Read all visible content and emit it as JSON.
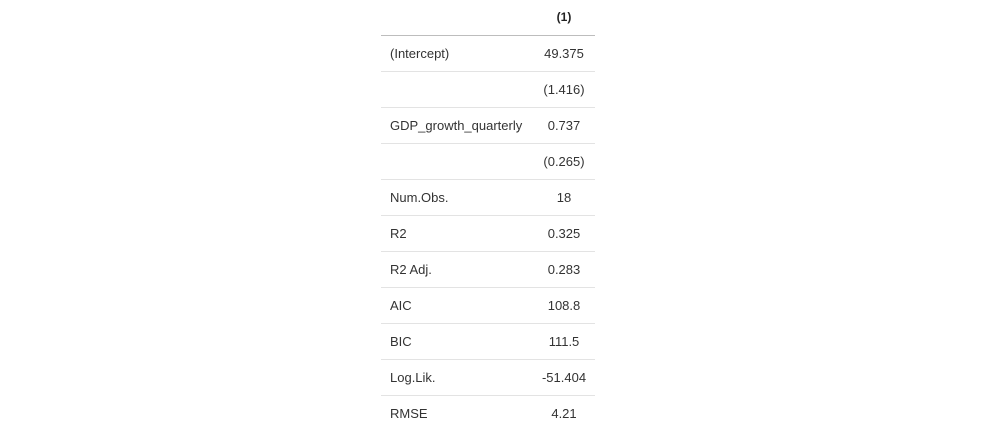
{
  "table": {
    "header": {
      "label": "",
      "model": "(1)"
    },
    "rows": [
      {
        "term": "(Intercept)",
        "value": "49.375"
      },
      {
        "term": "",
        "value": "(1.416)"
      },
      {
        "term": "GDP_growth_quarterly",
        "value": "0.737"
      },
      {
        "term": "",
        "value": "(0.265)"
      },
      {
        "term": "Num.Obs.",
        "value": "18"
      },
      {
        "term": "R2",
        "value": "0.325"
      },
      {
        "term": "R2 Adj.",
        "value": "0.283"
      },
      {
        "term": "AIC",
        "value": "108.8"
      },
      {
        "term": "BIC",
        "value": "111.5"
      },
      {
        "term": "Log.Lik.",
        "value": "-51.404"
      },
      {
        "term": "RMSE",
        "value": "4.21"
      }
    ]
  }
}
